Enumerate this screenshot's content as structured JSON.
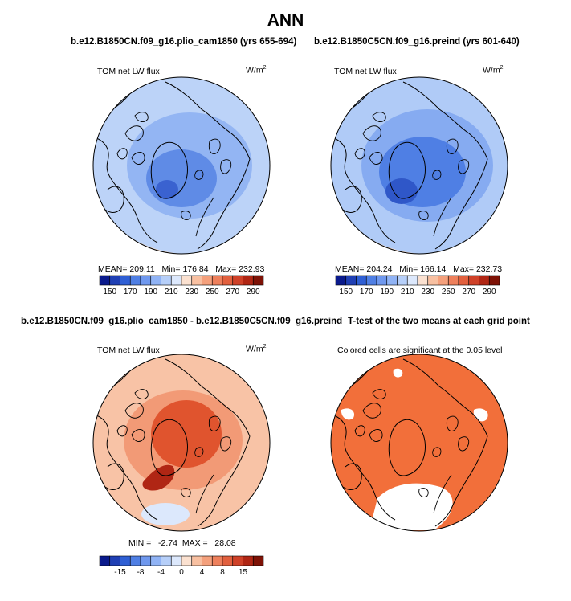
{
  "header": {
    "title": "ANN"
  },
  "panels": {
    "top_left": {
      "title": "b.e12.B1850CN.f09_g16.plio_cam1850 (yrs 655-694)",
      "variable": "TOM net LW flux",
      "units": "W/m",
      "units_sup": "2",
      "stats": "MEAN= 209.11   Min= 176.84   Max= 232.93"
    },
    "top_right": {
      "title": "b.e12.B1850C5CN.f09_g16.preind (yrs 601-640)",
      "variable": "TOM net LW flux",
      "units": "W/m",
      "units_sup": "2",
      "stats": "MEAN= 204.24   Min= 166.14   Max= 232.73"
    },
    "bottom_left": {
      "title": "b.e12.B1850CN.f09_g16.plio_cam1850 - b.e12.B1850C5CN.f09_g16.preind",
      "variable": "TOM net LW flux",
      "units": "W/m",
      "units_sup": "2",
      "stats": "MIN =   -2.74  MAX =   28.08"
    },
    "bottom_right": {
      "title": "T-test of the two means at each grid point",
      "subtitle": "Colored cells are significant at the 0.05 level"
    }
  },
  "chart_data": [
    {
      "type": "heatmap",
      "projection": "north polar stereographic",
      "title": "b.e12.B1850CN.f09_g16.plio_cam1850 (yrs 655-694)",
      "variable": "TOM net LW flux",
      "units": "W/m2",
      "mean": 209.11,
      "min": 176.84,
      "max": 232.93,
      "colorbar": {
        "tick_labels": [
          "150",
          "170",
          "190",
          "210",
          "230",
          "250",
          "270",
          "290"
        ],
        "colors": [
          "#0a1a8c",
          "#1f3fb4",
          "#2f5fd4",
          "#4f7fe4",
          "#6f98ee",
          "#90b3f5",
          "#b6cff9",
          "#dce8fc",
          "#fbe1d0",
          "#f8c0a1",
          "#f4a07c",
          "#ee805c",
          "#e2603e",
          "#cf4128",
          "#b02614",
          "#7e1206"
        ]
      }
    },
    {
      "type": "heatmap",
      "projection": "north polar stereographic",
      "title": "b.e12.B1850C5CN.f09_g16.preind (yrs 601-640)",
      "variable": "TOM net LW flux",
      "units": "W/m2",
      "mean": 204.24,
      "min": 166.14,
      "max": 232.73,
      "colorbar": {
        "tick_labels": [
          "150",
          "170",
          "190",
          "210",
          "230",
          "250",
          "270",
          "290"
        ],
        "colors": [
          "#0a1a8c",
          "#1f3fb4",
          "#2f5fd4",
          "#4f7fe4",
          "#6f98ee",
          "#90b3f5",
          "#b6cff9",
          "#dce8fc",
          "#fbe1d0",
          "#f8c0a1",
          "#f4a07c",
          "#ee805c",
          "#e2603e",
          "#cf4128",
          "#b02614",
          "#7e1206"
        ]
      }
    },
    {
      "type": "heatmap",
      "projection": "north polar stereographic",
      "title": "b.e12.B1850CN.f09_g16.plio_cam1850 - b.e12.B1850C5CN.f09_g16.preind",
      "variable": "TOM net LW flux",
      "units": "W/m2",
      "min": -2.74,
      "max": 28.08,
      "colorbar": {
        "tick_labels": [
          "-15",
          "-8",
          "-4",
          "0",
          "4",
          "8",
          "15"
        ],
        "colors": [
          "#0a1a8c",
          "#1f3fb4",
          "#2f5fd4",
          "#4f7fe4",
          "#6f98ee",
          "#90b3f5",
          "#b6cff9",
          "#dce8fc",
          "#fbe1d0",
          "#f8c0a1",
          "#f4a07c",
          "#ee805c",
          "#e2603e",
          "#cf4128",
          "#b02614",
          "#7e1206"
        ]
      }
    },
    {
      "type": "heatmap",
      "projection": "north polar stereographic",
      "title": "T-test of the two means at each grid point",
      "subtitle": "Colored cells are significant at the 0.05 level",
      "significance_level": 0.05,
      "significant_color": "#f26f3a"
    }
  ],
  "colors": {
    "land_outline": "#000000",
    "tl_base": "#bcd3f8",
    "tl_mid": "#93b5f3",
    "tl_core": "#5f8be6",
    "tl_deep": "#3a62d0",
    "tr_base": "#b0cbf7",
    "tr_mid": "#86abf1",
    "tr_core": "#4f7fe4",
    "tr_deep": "#2f57c8",
    "warm_edge": "#fbe1d0",
    "diff_base": "#f8c3a6",
    "diff_mid": "#f29a76",
    "diff_core": "#e0542e",
    "diff_deep": "#b02614",
    "diff_light": "#dce8fc",
    "ttest_fill": "#f26f3a"
  }
}
